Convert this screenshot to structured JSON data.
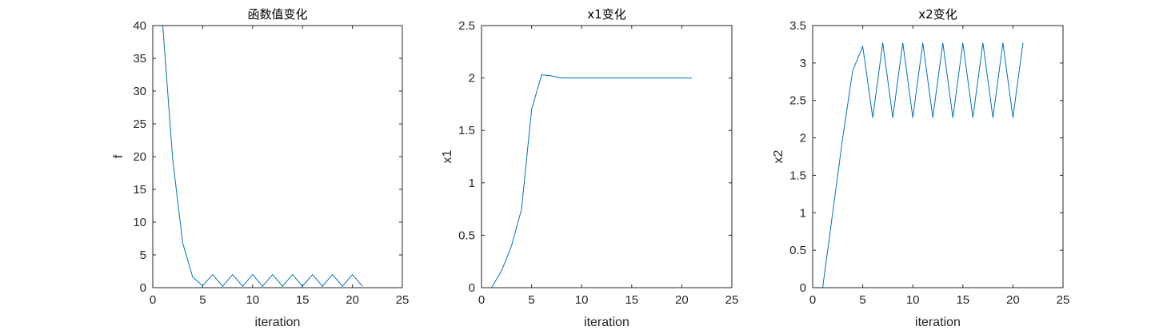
{
  "chart_data": [
    {
      "type": "line",
      "title": "函数值变化",
      "xlabel": "iteration",
      "ylabel": "f",
      "xlim": [
        0,
        25
      ],
      "ylim": [
        0,
        40
      ],
      "xticks": [
        0,
        5,
        10,
        15,
        20,
        25
      ],
      "yticks": [
        0,
        5,
        10,
        15,
        20,
        25,
        30,
        35,
        40
      ],
      "grid": false,
      "series_color": "#0072BD",
      "x": [
        1,
        2,
        3,
        4,
        5,
        6,
        7,
        8,
        9,
        10,
        11,
        12,
        13,
        14,
        15,
        16,
        17,
        18,
        19,
        20,
        21
      ],
      "y": [
        40.0,
        19.5,
        6.8,
        1.6,
        0.3,
        2.0,
        0.2,
        2.0,
        0.2,
        2.0,
        0.2,
        2.0,
        0.2,
        2.0,
        0.2,
        2.0,
        0.2,
        2.0,
        0.2,
        2.0,
        0.2
      ]
    },
    {
      "type": "line",
      "title": "x1变化",
      "xlabel": "iteration",
      "ylabel": "x1",
      "xlim": [
        0,
        25
      ],
      "ylim": [
        0,
        2.5
      ],
      "xticks": [
        0,
        5,
        10,
        15,
        20,
        25
      ],
      "yticks": [
        0,
        0.5,
        1,
        1.5,
        2,
        2.5
      ],
      "grid": false,
      "series_color": "#0072BD",
      "x": [
        1,
        2,
        3,
        4,
        5,
        6,
        7,
        8,
        9,
        10,
        11,
        12,
        13,
        14,
        15,
        16,
        17,
        18,
        19,
        20,
        21
      ],
      "y": [
        0.0,
        0.16,
        0.4,
        0.75,
        1.7,
        2.03,
        2.02,
        2.0,
        2.0,
        2.0,
        2.0,
        2.0,
        2.0,
        2.0,
        2.0,
        2.0,
        2.0,
        2.0,
        2.0,
        2.0,
        2.0
      ]
    },
    {
      "type": "line",
      "title": "x2变化",
      "xlabel": "iteration",
      "ylabel": "x2",
      "xlim": [
        0,
        25
      ],
      "ylim": [
        0,
        3.5
      ],
      "xticks": [
        0,
        5,
        10,
        15,
        20,
        25
      ],
      "yticks": [
        0,
        0.5,
        1,
        1.5,
        2,
        2.5,
        3,
        3.5
      ],
      "grid": false,
      "series_color": "#0072BD",
      "x": [
        1,
        2,
        3,
        4,
        5,
        6,
        7,
        8,
        9,
        10,
        11,
        12,
        13,
        14,
        15,
        16,
        17,
        18,
        19,
        20,
        21
      ],
      "y": [
        0.0,
        1.0,
        2.0,
        2.9,
        3.22,
        2.27,
        3.27,
        2.27,
        3.27,
        2.27,
        3.27,
        2.27,
        3.27,
        2.27,
        3.27,
        2.27,
        3.27,
        2.27,
        3.27,
        2.27,
        3.27
      ]
    }
  ]
}
